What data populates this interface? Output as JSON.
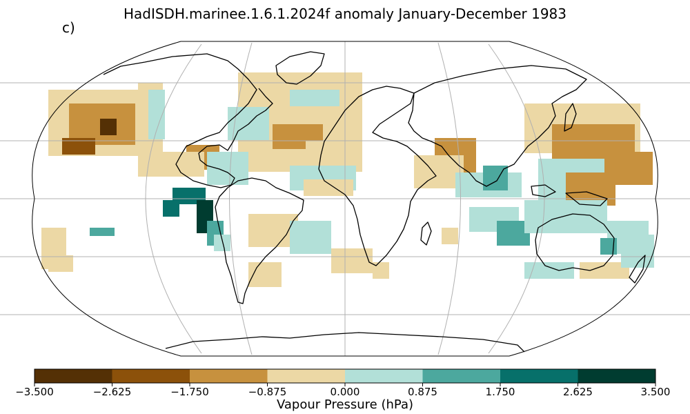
{
  "title": "HadISDH.marinee.1.6.1.2024f anomaly January-December 1983",
  "panel_label": "c)",
  "colorbar": {
    "label": "Vapour Pressure (hPa)",
    "ticks": [
      "−3.500",
      "−2.625",
      "−1.750",
      "−0.875",
      "0.000",
      "0.875",
      "1.750",
      "2.625",
      "3.500"
    ],
    "colors": [
      "#543005",
      "#8c510a",
      "#c7913e",
      "#ecd8a5",
      "#b2e0d8",
      "#4ca89e",
      "#07706a",
      "#003c30"
    ]
  },
  "map": {
    "projection": "Robinson",
    "graticule": true,
    "ocean_color": "#ffffff",
    "coastline_color": "#000000"
  }
}
